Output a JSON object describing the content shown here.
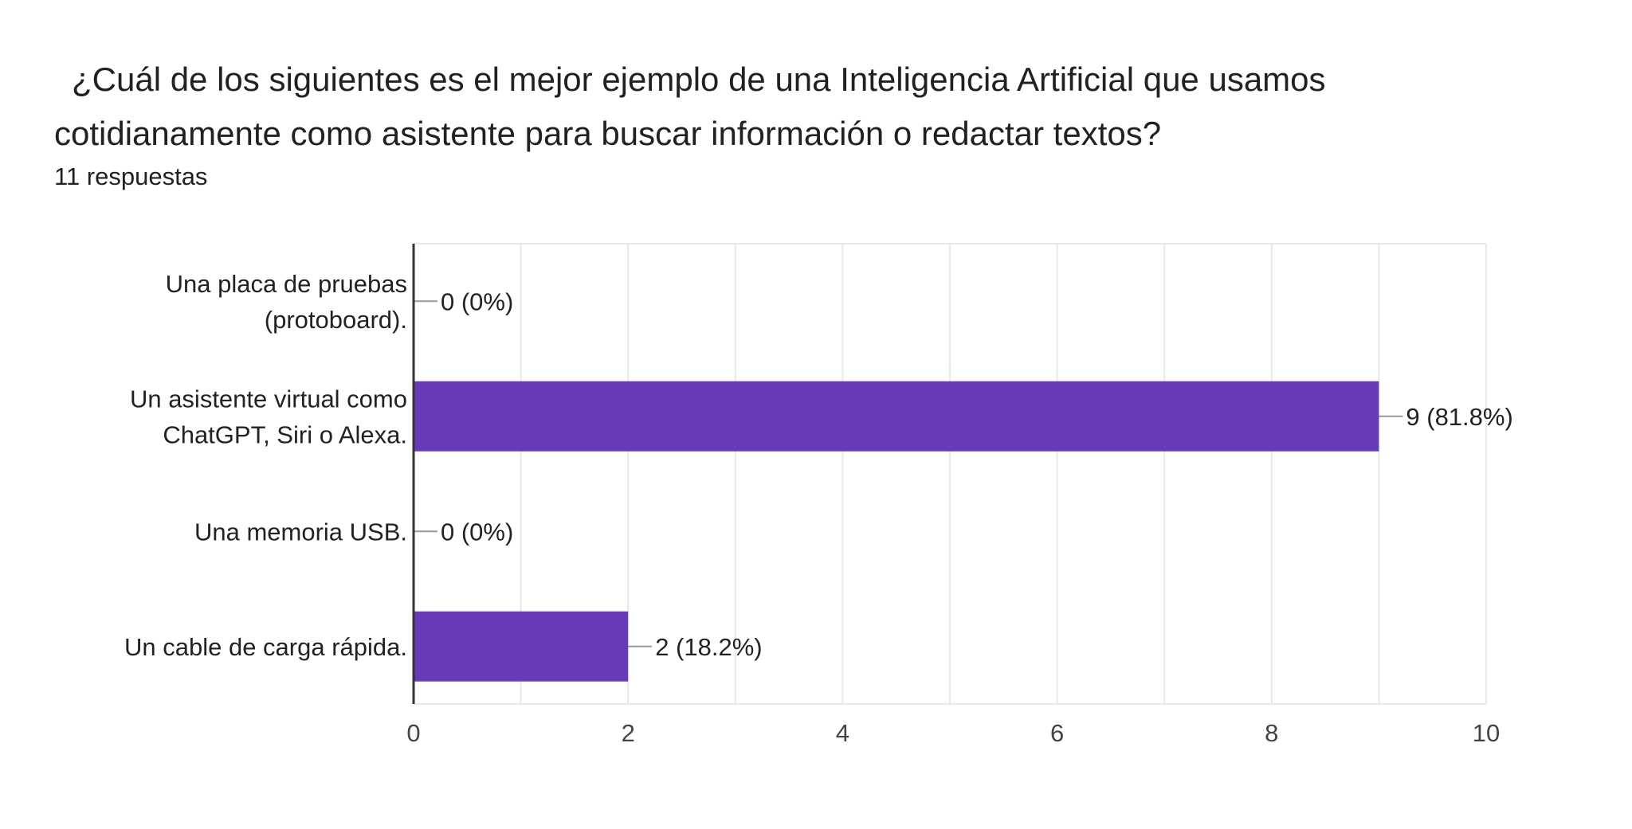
{
  "question": "¿Cuál de los siguientes es el mejor ejemplo de una Inteligencia Artificial que usamos cotidianamente como asistente para buscar información o redactar textos?",
  "response_count": "11 respuestas",
  "colors": {
    "bar": "#673ab7",
    "grid": "#e8e8e8",
    "axis": "#333333",
    "text": "#222222",
    "tick": "#444444",
    "leader": "#999999"
  },
  "chart_data": {
    "type": "bar",
    "orientation": "horizontal",
    "title": "¿Cuál de los siguientes es el mejor ejemplo de una Inteligencia Artificial que usamos cotidianamente como asistente para buscar información o redactar textos?",
    "xlabel": "",
    "ylabel": "",
    "xlim": [
      0,
      10
    ],
    "xticks": [
      0,
      2,
      4,
      6,
      8,
      10
    ],
    "grid": true,
    "categories": [
      [
        "Una placa de pruebas",
        "(protoboard)."
      ],
      [
        "Un asistente virtual como",
        "ChatGPT, Siri o Alexa."
      ],
      [
        "Una memoria USB."
      ],
      [
        "Un cable de carga rápida."
      ]
    ],
    "values": [
      0,
      9,
      0,
      2
    ],
    "data_labels": [
      "0 (0%)",
      "9 (81.8%)",
      "0 (0%)",
      "2 (18.2%)"
    ]
  }
}
